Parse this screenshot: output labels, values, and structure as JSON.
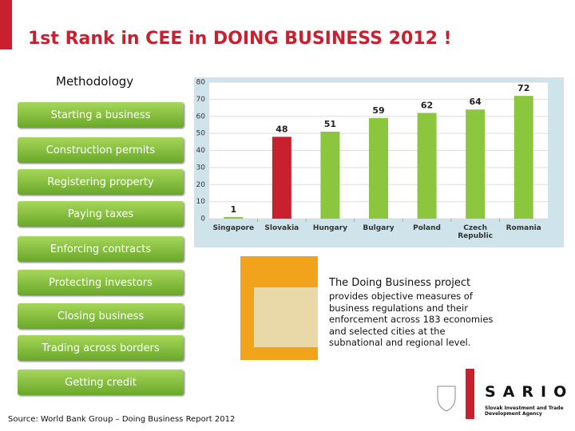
{
  "title": "1st Rank in CEE in DOING BUSINESS 2012 !",
  "methodology": {
    "heading": "Methodology",
    "items": [
      "Starting a business",
      "Construction permits",
      "Registering  property",
      "Paying taxes",
      "Enforcing contracts",
      "Protecting investors",
      "Closing business",
      "Trading across borders",
      "Getting credit"
    ]
  },
  "chart_data": {
    "type": "bar",
    "categories": [
      "Singapore",
      "Slovakia",
      "Hungary",
      "Bulgary",
      "Poland",
      "Czech Republic",
      "Romania"
    ],
    "values": [
      1,
      48,
      51,
      59,
      62,
      64,
      72
    ],
    "colors": [
      "#8cc63f",
      "#c8202f",
      "#8cc63f",
      "#8cc63f",
      "#8cc63f",
      "#8cc63f",
      "#8cc63f"
    ],
    "ylim": [
      0,
      80
    ],
    "yticks": [
      0,
      10,
      20,
      30,
      40,
      50,
      60,
      70,
      80
    ],
    "grid": true
  },
  "description": {
    "heading": "The Doing Business project",
    "body": "provides objective measures of business regulations and their enforcement across 183 economies and selected cities at the subnational and regional level."
  },
  "source": "Source: World Bank Group – Doing Business Report 2012",
  "logo": {
    "name": "SARIO",
    "tagline": "Slovak Investment and Trade Development Agency"
  }
}
